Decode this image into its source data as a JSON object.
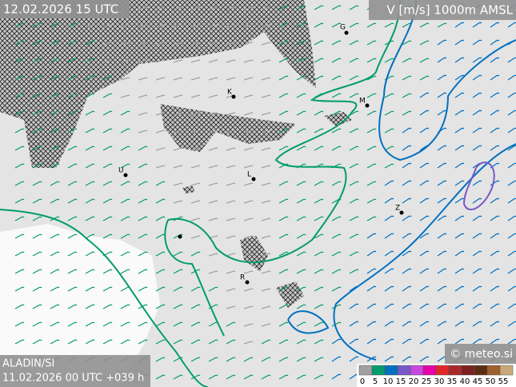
{
  "header": {
    "valid_time": "12.02.2026 15 UTC",
    "field": "V [m/s] 1000m AMSL"
  },
  "footer": {
    "model": "ALADIN/SI",
    "run": "11.02.2026 00 UTC +039 h",
    "copyright": "© meteo.si"
  },
  "places": [
    {
      "label": "G"
    },
    {
      "label": "K"
    },
    {
      "label": "M"
    },
    {
      "label": "U"
    },
    {
      "label": "L"
    },
    {
      "label": "Z"
    },
    {
      "label": "R"
    }
  ],
  "legend": {
    "values": [
      0,
      5,
      10,
      15,
      20,
      25,
      30,
      35,
      40,
      45,
      50,
      55
    ],
    "colors": [
      "#a0a0a0",
      "#009c6c",
      "#0070c0",
      "#7858c8",
      "#c848e0",
      "#e800a8",
      "#e02828",
      "#a82828",
      "#7c2020",
      "#5c2c10",
      "#a0602c",
      "#c8a878"
    ]
  }
}
